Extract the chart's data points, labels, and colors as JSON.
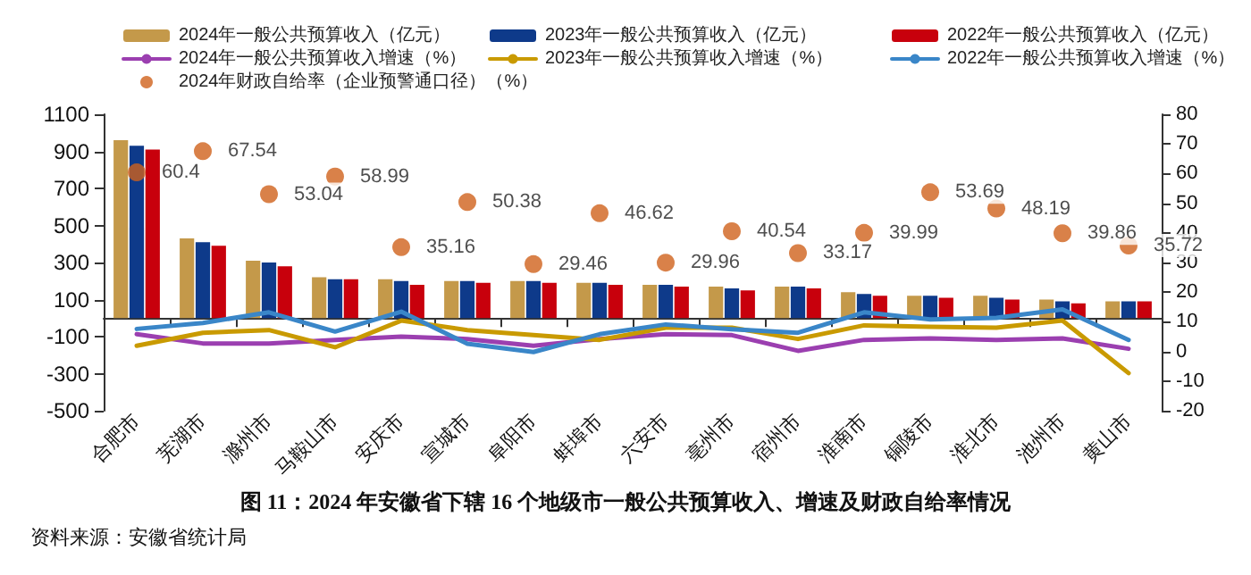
{
  "chart_data": {
    "type": "bar",
    "title": "图 11：2024 年安徽省下辖 16 个地级市一般公共预算收入、增速及财政自给率情况",
    "annotations": [
      "资料来源：安徽省统计局"
    ],
    "categories": [
      "合肥市",
      "芜湖市",
      "滁州市",
      "马鞍山市",
      "安庆市",
      "宣城市",
      "阜阳市",
      "蚌埠市",
      "六安市",
      "亳州市",
      "宿州市",
      "淮南市",
      "铜陵市",
      "淮北市",
      "池州市",
      "黄山市"
    ],
    "series": [
      {
        "name": "2024年一般公共预算收入（亿元）",
        "color": "#c4994a",
        "values": [
          960,
          430,
          310,
          220,
          210,
          200,
          200,
          190,
          180,
          170,
          170,
          140,
          120,
          120,
          100,
          90
        ]
      },
      {
        "name": "2023年一般公共预算收入（亿元）",
        "color": "#0e3a8a",
        "values": [
          930,
          410,
          300,
          210,
          200,
          200,
          200,
          190,
          180,
          160,
          170,
          130,
          120,
          110,
          90,
          90
        ]
      },
      {
        "name": "2022年一般公共预算收入（亿元）",
        "color": "#c8000c",
        "values": [
          910,
          390,
          280,
          210,
          180,
          190,
          190,
          180,
          170,
          150,
          160,
          120,
          110,
          100,
          80,
          90
        ]
      },
      {
        "name": "2024年一般公共预算收入增速（%）",
        "type": "line",
        "axis": "y2",
        "color": "#9b3fb0",
        "values": [
          5.8,
          2.7,
          2.7,
          3.9,
          5.0,
          4.2,
          1.9,
          4.2,
          5.8,
          5.5,
          0.2,
          3.9,
          4.4,
          3.9,
          4.4,
          0.9
        ]
      },
      {
        "name": "2023年一般公共预算收入增速（%）",
        "type": "line",
        "axis": "y2",
        "color": "#c99a00",
        "values": [
          1.9,
          6.3,
          7.2,
          1.4,
          10.4,
          7.2,
          5.5,
          3.9,
          8.0,
          8.0,
          4.2,
          8.8,
          8.3,
          8.0,
          10.4,
          -7.3
        ]
      },
      {
        "name": "2022年一般公共预算收入增速（%）",
        "type": "line",
        "axis": "y2",
        "color": "#3a86c8",
        "values": [
          7.6,
          9.6,
          13.2,
          6.7,
          13.4,
          2.6,
          -0.2,
          5.8,
          9.1,
          7.5,
          6.3,
          13.2,
          10.8,
          11.3,
          14.2,
          3.9
        ]
      },
      {
        "name": "2024年财政自给率（企业预警通口径）（%）",
        "type": "scatter",
        "axis": "y2",
        "color": "#d0621c",
        "values": [
          60.4,
          67.54,
          53.04,
          58.99,
          35.16,
          50.38,
          29.46,
          46.62,
          29.96,
          40.54,
          33.17,
          39.99,
          53.69,
          48.19,
          39.86,
          35.72
        ],
        "value_labels": [
          "60.4",
          "67.54",
          "53.04",
          "58.99",
          "35.16",
          "50.38",
          "29.46",
          "46.62",
          "29.96",
          "40.54",
          "33.17",
          "39.99",
          "53.69",
          "48.19",
          "39.86",
          "35.72"
        ]
      }
    ],
    "ylim": [
      -500,
      1100
    ],
    "yticks": [
      -500,
      -300,
      -100,
      100,
      300,
      500,
      700,
      900,
      1100
    ],
    "y2lim": [
      -20,
      80
    ],
    "y2ticks": [
      -20,
      -10,
      0,
      10,
      20,
      30,
      40,
      50,
      60,
      70,
      80
    ],
    "grid": false,
    "legend": "top"
  }
}
